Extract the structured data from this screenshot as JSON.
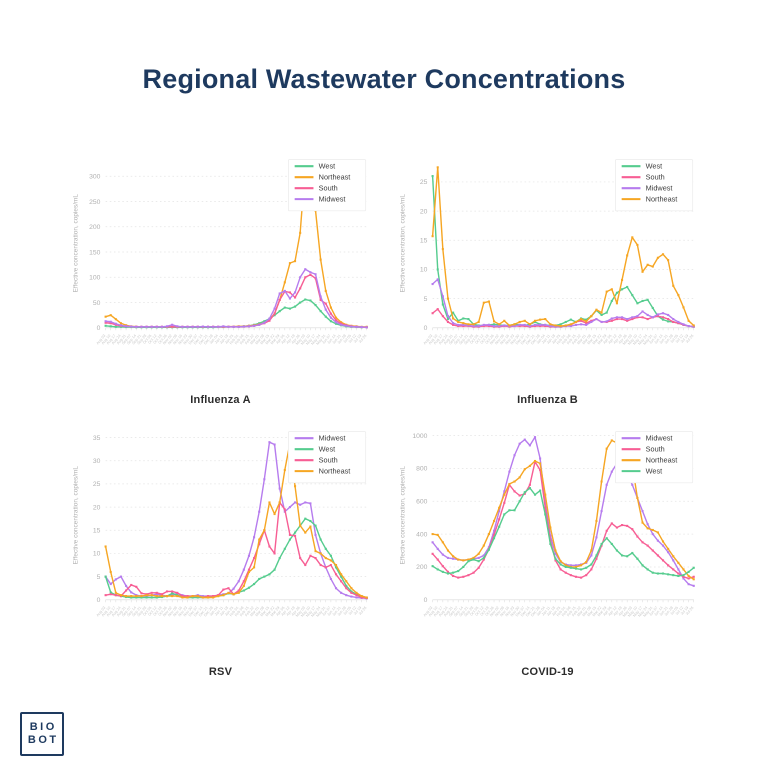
{
  "title": "Regional Wastewater Concentrations",
  "logo": {
    "line1": "BIO",
    "line2": "BOT"
  },
  "region_colors": {
    "West": "#55CC8E",
    "Northeast": "#F6A623",
    "South": "#F75E94",
    "Midwest": "#B67CEE"
  },
  "style_colors": {
    "title_navy": "#1E3A5F",
    "grid": "#E4E4E4",
    "baseline": "#D9D9D9",
    "axis_text": "#B0B0B0",
    "date_text": "#C8C8C8",
    "legend_text": "#3C3C3C",
    "legend_border": "#EBEBEB"
  },
  "x_labels": [
    "Aug 03",
    "Aug 10",
    "Aug 17",
    "Aug 24",
    "Aug 31",
    "Sep 07",
    "Sep 14",
    "Sep 21",
    "Sep 28",
    "Oct 05",
    "Oct 12",
    "Oct 19",
    "Oct 26",
    "Nov 02",
    "Nov 09",
    "Nov 16",
    "Nov 23",
    "Nov 30",
    "Dec 07",
    "Dec 14",
    "Dec 21",
    "Dec 28",
    "Jan 04",
    "Jan 11",
    "Jan 18",
    "Jan 25",
    "Feb 01",
    "Feb 08",
    "Feb 15",
    "Feb 22",
    "Mar 01",
    "Mar 08",
    "Mar 15",
    "Mar 22",
    "Mar 29",
    "Apr 05",
    "Apr 12",
    "Apr 19",
    "Apr 26",
    "May 03",
    "May 10",
    "May 17",
    "May 24",
    "May 31",
    "Jun 07",
    "Jun 14",
    "Jun 21",
    "Jun 28",
    "Jul 05",
    "Jul 12",
    "Jul 19",
    "Jul 26"
  ],
  "chart_data": [
    {
      "type": "line",
      "title": "Influenza A",
      "ylabel": "Effective concentration, copies/mL",
      "ylim": [
        0,
        335
      ],
      "yticks": [
        0,
        50,
        100,
        150,
        200,
        250,
        300
      ],
      "legend_position": "top-right",
      "grid": true,
      "series": [
        {
          "name": "West",
          "values": [
            4,
            3,
            2,
            2,
            1.5,
            1.5,
            1,
            1,
            1,
            1,
            1,
            1,
            1,
            1,
            1,
            1,
            1,
            1,
            1,
            1,
            1,
            1,
            1.5,
            1.5,
            2,
            2,
            2.5,
            3,
            4,
            6,
            9,
            13,
            18,
            25,
            33,
            40,
            38,
            42,
            50,
            56,
            54,
            45,
            33,
            22,
            13,
            8,
            5,
            3,
            2,
            1.5,
            1,
            1
          ]
        },
        {
          "name": "Northeast",
          "values": [
            22,
            25,
            17,
            9,
            5,
            3,
            2.5,
            2,
            2,
            2,
            2,
            2,
            2,
            2,
            2,
            2,
            2,
            2,
            2,
            2,
            2,
            2,
            2,
            2,
            2.5,
            2.5,
            3,
            3,
            4,
            5,
            7,
            10,
            16,
            28,
            55,
            90,
            128,
            132,
            188,
            320,
            295,
            232,
            135,
            73,
            40,
            20,
            11,
            6,
            4,
            3,
            2,
            2
          ]
        },
        {
          "name": "South",
          "values": [
            10,
            9,
            6,
            4,
            3,
            2.5,
            2,
            2,
            2,
            2,
            2,
            2,
            2,
            2,
            2,
            2,
            2,
            2,
            2,
            2,
            2,
            2,
            2,
            2,
            2,
            2,
            2,
            2.5,
            3,
            4,
            6,
            9,
            14,
            28,
            55,
            72,
            70,
            60,
            78,
            100,
            105,
            98,
            55,
            48,
            28,
            15,
            8,
            5,
            3,
            2,
            1.5,
            1
          ]
        },
        {
          "name": "Midwest",
          "values": [
            13,
            12,
            8,
            5,
            3,
            2.5,
            2,
            2,
            2,
            2,
            2,
            2,
            3,
            6,
            3,
            2,
            2,
            2,
            2,
            2.5,
            2,
            2,
            2,
            3,
            2,
            2,
            2,
            2.5,
            3,
            4,
            6,
            10,
            18,
            38,
            68,
            73,
            58,
            70,
            100,
            116,
            110,
            106,
            62,
            36,
            20,
            11,
            6,
            4,
            2.5,
            2,
            1.5,
            1
          ]
        }
      ]
    },
    {
      "type": "line",
      "title": "Influenza B",
      "ylabel": "Effective concentration, copies/mL",
      "ylim": [
        0,
        29
      ],
      "yticks": [
        0,
        5,
        10,
        15,
        20,
        25
      ],
      "legend_position": "top-right",
      "grid": true,
      "series": [
        {
          "name": "West",
          "values": [
            26,
            10,
            4,
            1.5,
            2.6,
            1.2,
            1.6,
            1.5,
            0.6,
            0.4,
            0.4,
            0.5,
            0.6,
            0.5,
            0.4,
            0.4,
            0.6,
            0.5,
            0.4,
            0.6,
            1,
            0.6,
            0.5,
            0.4,
            0.4,
            0.6,
            1,
            1.4,
            1,
            1.6,
            1.4,
            2,
            3,
            2.2,
            2.6,
            4.6,
            6,
            6.6,
            7,
            5.6,
            4.2,
            4.6,
            4.8,
            3.4,
            2,
            1.4,
            1.1,
            1,
            0.8,
            0.5,
            0.3,
            0.2
          ]
        },
        {
          "name": "South",
          "values": [
            2.5,
            3.2,
            2,
            1,
            0.5,
            0.3,
            0.3,
            0.3,
            0.2,
            0.2,
            0.3,
            0.3,
            0.2,
            0.2,
            0.3,
            0.2,
            0.3,
            0.3,
            0.3,
            0.2,
            0.3,
            0.3,
            0.3,
            0.2,
            0.2,
            0.2,
            0.3,
            0.5,
            1,
            1.2,
            0.8,
            1.2,
            1.5,
            1,
            1,
            1.2,
            1.5,
            1.5,
            1.2,
            1.5,
            1.8,
            1.8,
            1.5,
            1.8,
            2,
            1.8,
            1.5,
            1,
            0.8,
            0.5,
            0.3,
            0.2
          ]
        },
        {
          "name": "Midwest",
          "values": [
            7.5,
            8.3,
            5.4,
            2,
            0.8,
            0.5,
            0.5,
            0.4,
            0.3,
            0.3,
            0.5,
            0.5,
            0.3,
            0.3,
            0.4,
            0.3,
            0.3,
            0.5,
            0.5,
            0.3,
            0.5,
            0.5,
            0.5,
            0.3,
            0.2,
            0.2,
            0.3,
            0.3,
            0.5,
            0.6,
            0.5,
            1,
            1.5,
            1,
            1.1,
            1.6,
            1.8,
            1.8,
            1.5,
            1.8,
            2,
            2.8,
            2.2,
            1.8,
            2.3,
            2.5,
            2.2,
            1.5,
            1,
            0.6,
            0.3,
            0.2
          ]
        },
        {
          "name": "Northeast",
          "values": [
            15.7,
            27.5,
            13.5,
            5,
            1.6,
            1,
            0.8,
            0.6,
            0.6,
            1,
            4.3,
            4.5,
            1.1,
            0.6,
            1.2,
            0.4,
            0.6,
            1,
            1.2,
            0.6,
            1.2,
            1.4,
            1.5,
            0.6,
            0.4,
            0.3,
            0.4,
            0.6,
            1,
            1.5,
            1.1,
            2,
            3.1,
            2.6,
            6.2,
            6.6,
            4.2,
            8.2,
            12.4,
            15.5,
            14.2,
            9.6,
            10.8,
            10.5,
            12,
            12.6,
            11.6,
            7.2,
            5.6,
            3.5,
            1.2,
            0.4
          ]
        }
      ]
    },
    {
      "type": "line",
      "title": "RSV",
      "ylabel": "Effective concentration, copies/mL",
      "ylim": [
        0,
        36.5
      ],
      "yticks": [
        0,
        5,
        10,
        15,
        20,
        25,
        30,
        35
      ],
      "legend_position": "top-right",
      "grid": true,
      "series": [
        {
          "name": "Midwest",
          "values": [
            5,
            3.4,
            4.4,
            5,
            3,
            1.6,
            1,
            0.8,
            0.8,
            1,
            1.2,
            1,
            0.8,
            1,
            1.4,
            1,
            0.8,
            0.8,
            1,
            0.8,
            0.8,
            0.8,
            1,
            1.2,
            1.4,
            2.4,
            4,
            6.5,
            9.5,
            13.5,
            19,
            26,
            34,
            33.5,
            24,
            19,
            20,
            21,
            20.5,
            21,
            20.8,
            14,
            10,
            7,
            4.5,
            2.5,
            1.5,
            1,
            0.7,
            0.5,
            0.4,
            0.3
          ]
        },
        {
          "name": "West",
          "values": [
            5,
            1.6,
            1,
            0.8,
            0.6,
            0.5,
            0.5,
            0.5,
            0.5,
            0.5,
            0.5,
            0.6,
            0.8,
            1.4,
            1,
            0.6,
            0.5,
            0.5,
            0.5,
            0.5,
            0.5,
            0.6,
            0.8,
            1,
            1.4,
            1.2,
            1.6,
            2,
            2.6,
            3.4,
            4.5,
            5,
            5.5,
            6.5,
            9,
            11,
            13,
            14.5,
            16,
            17.5,
            17,
            16,
            13,
            11,
            9.5,
            7,
            5,
            3,
            1.8,
            1.2,
            0.8,
            0.4
          ]
        },
        {
          "name": "South",
          "values": [
            1,
            1.2,
            1,
            0.8,
            2,
            3.2,
            2.8,
            1.4,
            1.2,
            1.5,
            1.5,
            1.2,
            1.8,
            1.8,
            1.5,
            0.8,
            0.8,
            0.8,
            0.8,
            0.5,
            0.8,
            0.8,
            1,
            2.2,
            2.5,
            1.2,
            2,
            4,
            6.5,
            9,
            12,
            15,
            11.5,
            10,
            21,
            19.5,
            14,
            13.8,
            9,
            7.5,
            9.5,
            9,
            7.5,
            7,
            7.5,
            5.5,
            4,
            2.5,
            1.5,
            1,
            0.5,
            0.4
          ]
        },
        {
          "name": "Northeast",
          "values": [
            11.5,
            6,
            1.5,
            1,
            0.8,
            0.8,
            0.8,
            0.8,
            1,
            1,
            0.8,
            0.8,
            0.8,
            0.8,
            0.8,
            0.5,
            0.5,
            0.8,
            0.8,
            0.5,
            0.5,
            0.5,
            0.8,
            1,
            1.5,
            1.2,
            1.5,
            3,
            6,
            7,
            13,
            15,
            21,
            18.5,
            21,
            28,
            33.8,
            24.5,
            16,
            14.5,
            15.8,
            10.5,
            10,
            9,
            8.5,
            7.5,
            5.5,
            4,
            2.5,
            1.5,
            0.8,
            0.5
          ]
        }
      ]
    },
    {
      "type": "line",
      "title": "COVID-19",
      "ylabel": "Effective concentration, copies/mL",
      "ylim": [
        0,
        1030
      ],
      "yticks": [
        0,
        200,
        400,
        600,
        800,
        1000
      ],
      "legend_position": "top-right",
      "grid": true,
      "series": [
        {
          "name": "Midwest",
          "values": [
            350,
            310,
            275,
            255,
            250,
            245,
            240,
            245,
            250,
            255,
            270,
            320,
            420,
            540,
            660,
            780,
            880,
            950,
            975,
            940,
            990,
            860,
            590,
            390,
            280,
            230,
            215,
            210,
            210,
            215,
            225,
            270,
            380,
            540,
            700,
            780,
            830,
            795,
            765,
            700,
            620,
            540,
            460,
            400,
            360,
            330,
            290,
            240,
            185,
            130,
            95,
            85
          ]
        },
        {
          "name": "South",
          "values": [
            280,
            245,
            205,
            170,
            145,
            135,
            140,
            150,
            165,
            195,
            245,
            310,
            395,
            490,
            590,
            700,
            660,
            635,
            645,
            700,
            840,
            790,
            560,
            360,
            240,
            185,
            165,
            150,
            140,
            135,
            150,
            185,
            250,
            330,
            420,
            465,
            440,
            455,
            450,
            430,
            385,
            350,
            330,
            300,
            270,
            240,
            210,
            185,
            160,
            140,
            130,
            140
          ]
        },
        {
          "name": "Northeast",
          "values": [
            400,
            395,
            350,
            300,
            265,
            245,
            240,
            245,
            255,
            280,
            330,
            400,
            480,
            560,
            640,
            705,
            720,
            745,
            795,
            815,
            845,
            830,
            640,
            440,
            300,
            235,
            210,
            200,
            200,
            210,
            230,
            300,
            480,
            720,
            920,
            970,
            955,
            905,
            865,
            820,
            620,
            470,
            435,
            425,
            410,
            355,
            310,
            265,
            225,
            185,
            145,
            125
          ]
        },
        {
          "name": "West",
          "values": [
            205,
            185,
            170,
            160,
            165,
            175,
            200,
            235,
            245,
            235,
            255,
            305,
            375,
            445,
            520,
            545,
            545,
            600,
            655,
            680,
            640,
            665,
            520,
            340,
            250,
            215,
            200,
            195,
            190,
            185,
            195,
            215,
            270,
            340,
            375,
            340,
            300,
            270,
            265,
            285,
            250,
            210,
            185,
            165,
            160,
            160,
            155,
            150,
            145,
            150,
            170,
            195
          ]
        }
      ]
    }
  ]
}
